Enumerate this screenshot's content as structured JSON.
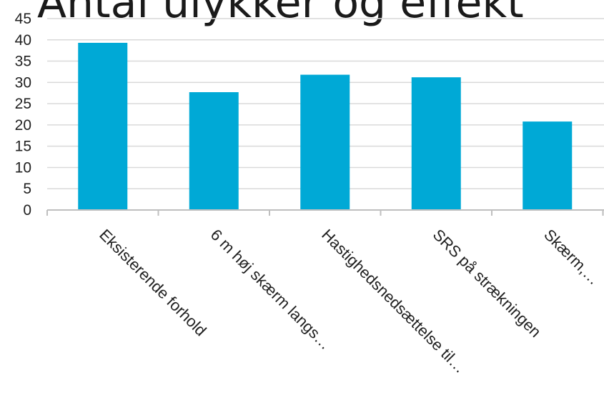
{
  "chart_data": {
    "type": "bar",
    "title": "Antal ulykker og effekt",
    "categories": [
      "Eksisterende forhold",
      "6 m høj skærm langs…",
      "Hastighedsnedsættelse til…",
      "SRS på strækningen",
      "Skærm,…"
    ],
    "values": [
      39.3,
      27.7,
      31.8,
      31.2,
      20.8
    ],
    "ylim": [
      0,
      45
    ],
    "yticks": [
      0,
      5,
      10,
      15,
      20,
      25,
      30,
      35,
      40,
      45
    ],
    "xlabel": "",
    "ylabel": "",
    "grid": true,
    "legend": "none",
    "bar_color": "#00a9d6"
  }
}
